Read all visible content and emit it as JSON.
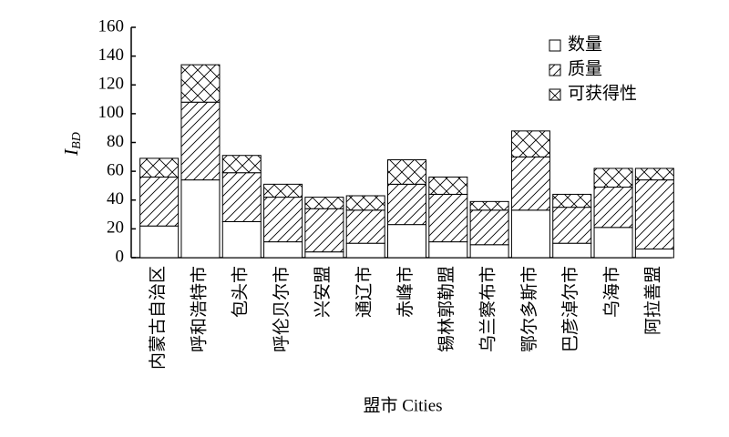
{
  "chart_data": {
    "type": "stacked_bar",
    "y_label": "I",
    "y_label_sub": "BD",
    "x_label": "盟市 Cities",
    "categories": [
      "内蒙古自治区",
      "呼和浩特市",
      "包头市",
      "呼伦贝尔市",
      "兴安盟",
      "通辽市",
      "赤峰市",
      "锡林郭勒盟",
      "乌兰察布市",
      "鄂尔多斯市",
      "巴彦淖尔市",
      "乌海市",
      "阿拉善盟"
    ],
    "series": [
      {
        "name": "数量",
        "color": "#ffffff",
        "hatch": "none",
        "values": [
          22,
          54,
          25,
          11,
          4,
          10,
          23,
          11,
          9,
          33,
          10,
          21,
          6
        ]
      },
      {
        "name": "质量",
        "color": "#ffffff",
        "hatch": "diagonal",
        "values": [
          34,
          54,
          34,
          31,
          30,
          23,
          28,
          33,
          24,
          37,
          25,
          28,
          48
        ]
      },
      {
        "name": "可获得性",
        "color": "#ffffff",
        "hatch": "cross",
        "values": [
          13,
          26,
          12,
          9,
          8,
          10,
          17,
          12,
          6,
          18,
          9,
          13,
          8
        ]
      }
    ],
    "ylim": [
      0,
      160
    ],
    "yticks": [
      0,
      20,
      40,
      60,
      80,
      100,
      120,
      140,
      160
    ],
    "legend": "upper-right"
  }
}
